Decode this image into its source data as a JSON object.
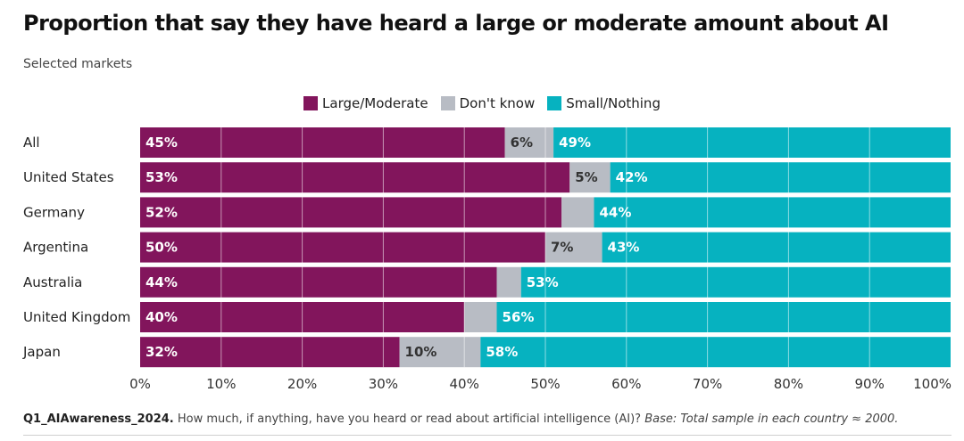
{
  "header": {
    "title": "Proportion that say they have heard a large or moderate amount about AI",
    "subtitle": "Selected markets"
  },
  "footnote": {
    "question_id": "Q1_AIAwareness_2024.",
    "question_text": " How much, if anything, have you heard or read about artificial intelligence (AI)? ",
    "base": "Base: Total sample in each country ≈ 2000."
  },
  "colors": {
    "large_moderate": "#82155c",
    "dont_know": "#b8bcc4",
    "small_nothing": "#06b2c0"
  },
  "chart_data": {
    "type": "bar",
    "orientation": "horizontal",
    "stacked": true,
    "title": "Proportion that say they have heard a large or moderate amount about AI",
    "subtitle": "Selected markets",
    "categories": [
      "All",
      "United States",
      "Germany",
      "Argentina",
      "Australia",
      "United Kingdom",
      "Japan"
    ],
    "series": [
      {
        "name": "Large/Moderate",
        "color": "#82155c",
        "values": [
          45,
          53,
          52,
          50,
          44,
          40,
          32
        ],
        "labels": [
          "45%",
          "53%",
          "52%",
          "50%",
          "44%",
          "40%",
          "32%"
        ]
      },
      {
        "name": "Don't know",
        "color": "#b8bcc4",
        "values": [
          6,
          5,
          4,
          7,
          3,
          4,
          10
        ],
        "labels": [
          "6%",
          "5%",
          "",
          "7%",
          "",
          "",
          "10%"
        ]
      },
      {
        "name": "Small/Nothing",
        "color": "#06b2c0",
        "values": [
          49,
          42,
          44,
          43,
          53,
          56,
          58
        ],
        "labels": [
          "49%",
          "42%",
          "44%",
          "43%",
          "53%",
          "56%",
          "58%"
        ]
      }
    ],
    "xlim": [
      0,
      100
    ],
    "xticks": [
      "0%",
      "10%",
      "20%",
      "30%",
      "40%",
      "50%",
      "60%",
      "70%",
      "80%",
      "90%",
      "100%"
    ],
    "grid": true,
    "legend_position": "top-center"
  }
}
